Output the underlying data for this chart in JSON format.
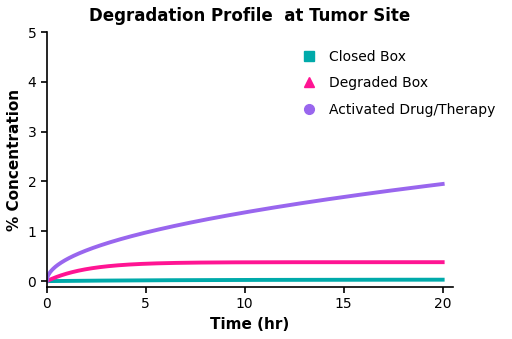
{
  "title": "Degradation Profile  at Tumor Site",
  "xlabel": "Time (hr)",
  "ylabel": "% Concentration",
  "xlim": [
    0,
    20.5
  ],
  "ylim": [
    -0.12,
    5
  ],
  "xticks": [
    0,
    5,
    10,
    15,
    20
  ],
  "yticks": [
    0,
    1,
    2,
    3,
    4,
    5
  ],
  "series": [
    {
      "name": "Closed Box",
      "color": "#00AAAA",
      "marker": "s"
    },
    {
      "name": "Degraded Box",
      "color": "#FF1493",
      "marker": "^"
    },
    {
      "name": "Activated Drug/Therapy",
      "color": "#9966EE",
      "marker": "o"
    }
  ],
  "background_color": "#FFFFFF",
  "title_fontsize": 12,
  "label_fontsize": 11,
  "tick_fontsize": 10,
  "legend_fontsize": 10,
  "linewidth": 2.8
}
